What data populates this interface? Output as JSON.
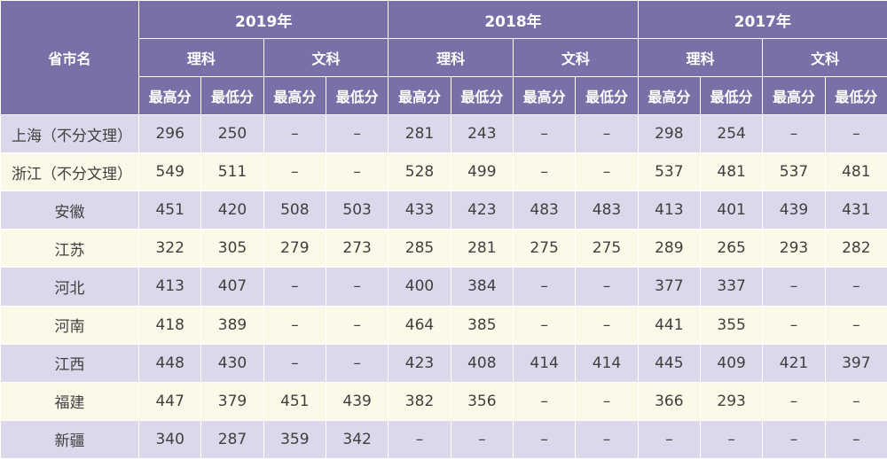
{
  "table": {
    "province_header": "省市名",
    "years": [
      "2019年",
      "2018年",
      "2017年"
    ],
    "tracks": [
      "理科",
      "文科"
    ],
    "score_labels": [
      "最高分",
      "最低分"
    ],
    "rows": [
      {
        "province": "上海（不分文理）",
        "values": [
          "296",
          "250",
          "–",
          "–",
          "281",
          "243",
          "–",
          "–",
          "298",
          "254",
          "–",
          "–"
        ]
      },
      {
        "province": "浙江（不分文理）",
        "values": [
          "549",
          "511",
          "–",
          "–",
          "528",
          "499",
          "–",
          "–",
          "537",
          "481",
          "537",
          "481"
        ]
      },
      {
        "province": "安徽",
        "values": [
          "451",
          "420",
          "508",
          "503",
          "433",
          "423",
          "483",
          "483",
          "413",
          "401",
          "439",
          "431"
        ]
      },
      {
        "province": "江苏",
        "values": [
          "322",
          "305",
          "279",
          "273",
          "285",
          "281",
          "275",
          "275",
          "289",
          "265",
          "293",
          "282"
        ]
      },
      {
        "province": "河北",
        "values": [
          "413",
          "407",
          "–",
          "–",
          "400",
          "384",
          "–",
          "–",
          "377",
          "337",
          "–",
          "–"
        ]
      },
      {
        "province": "河南",
        "values": [
          "418",
          "389",
          "–",
          "–",
          "464",
          "385",
          "–",
          "–",
          "441",
          "355",
          "–",
          "–"
        ]
      },
      {
        "province": "江西",
        "values": [
          "448",
          "430",
          "–",
          "–",
          "423",
          "408",
          "414",
          "414",
          "445",
          "409",
          "421",
          "397"
        ]
      },
      {
        "province": "福建",
        "values": [
          "447",
          "379",
          "451",
          "439",
          "382",
          "356",
          "–",
          "–",
          "366",
          "293",
          "–",
          "–"
        ]
      },
      {
        "province": "新疆",
        "values": [
          "340",
          "287",
          "359",
          "342",
          "–",
          "–",
          "–",
          "–",
          "–",
          "–",
          "–",
          "–"
        ]
      }
    ]
  }
}
